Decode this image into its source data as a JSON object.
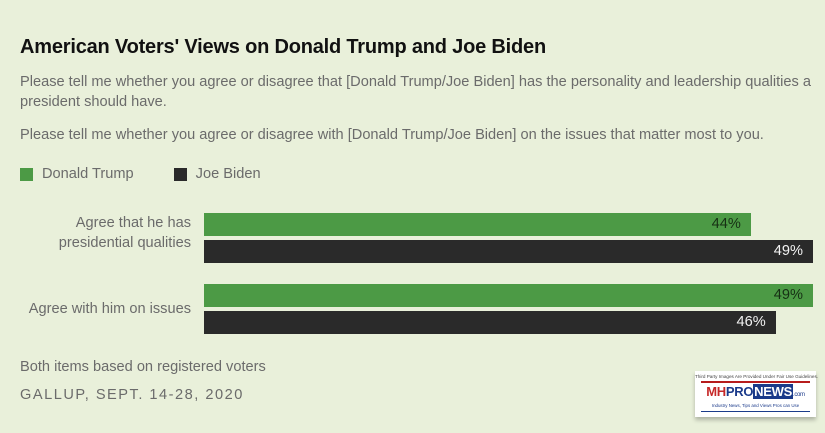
{
  "colors": {
    "background": "#e9f0da",
    "trump": "#4c9a45",
    "biden": "#2a2a2a",
    "trump_label": "#163014",
    "biden_label": "#f2f2f2"
  },
  "chart_data": {
    "type": "bar",
    "orientation": "horizontal",
    "title": "American Voters' Views on Donald Trump and Joe Biden",
    "subtitles": [
      "Please tell me whether you agree or disagree that [Donald Trump/Joe Biden] has the personality and leadership qualities a president should have.",
      "Please tell me whether you agree or disagree with [Donald Trump/Joe Biden] on the issues that matter most to you."
    ],
    "categories": [
      "Agree that he has presidential qualities",
      "Agree with him on issues"
    ],
    "category_lines": [
      [
        "Agree that he has",
        "presidential qualities"
      ],
      [
        "Agree with him on issues"
      ]
    ],
    "series": [
      {
        "name": "Donald Trump",
        "values": [
          44,
          49
        ],
        "labels": [
          "44%",
          "49%"
        ]
      },
      {
        "name": "Joe Biden",
        "values": [
          49,
          46
        ],
        "labels": [
          "49%",
          "46%"
        ]
      }
    ],
    "unit": "%",
    "xlim": [
      0,
      49
    ],
    "grid": false,
    "legend_position": "top-left",
    "note": "Both items based on registered voters",
    "source": "GALLUP, SEPT. 14-28, 2020"
  },
  "legend": [
    {
      "name": "Donald Trump"
    },
    {
      "name": "Joe Biden"
    }
  ],
  "watermark": {
    "top_text": "Third Party Images Are Provided Under Fair Use Guidelines.",
    "logo_mh": "MH",
    "logo_pro": "PRO",
    "logo_news": "NEWS",
    "logo_com": ".com",
    "tagline": "Industry News, Tips and Views Pros can Use"
  }
}
